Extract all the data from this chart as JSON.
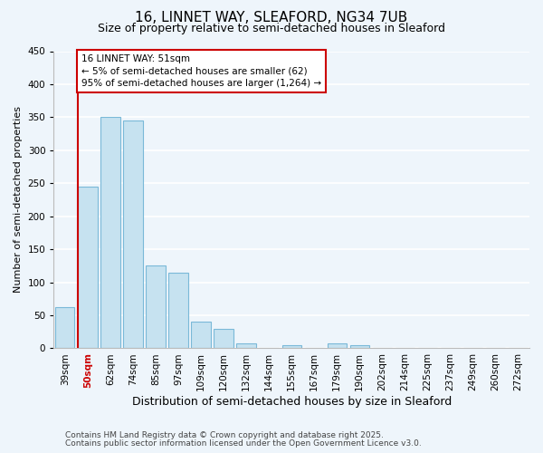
{
  "title": "16, LINNET WAY, SLEAFORD, NG34 7UB",
  "subtitle": "Size of property relative to semi-detached houses in Sleaford",
  "xlabel": "Distribution of semi-detached houses by size in Sleaford",
  "ylabel": "Number of semi-detached properties",
  "bin_labels": [
    "39sqm",
    "50sqm",
    "62sqm",
    "74sqm",
    "85sqm",
    "97sqm",
    "109sqm",
    "120sqm",
    "132sqm",
    "144sqm",
    "155sqm",
    "167sqm",
    "179sqm",
    "190sqm",
    "202sqm",
    "214sqm",
    "225sqm",
    "237sqm",
    "249sqm",
    "260sqm",
    "272sqm"
  ],
  "bar_values": [
    62,
    245,
    350,
    345,
    125,
    115,
    40,
    30,
    8,
    0,
    5,
    0,
    7,
    5,
    0,
    0,
    0,
    0,
    0,
    0,
    0
  ],
  "bar_color": "#c6e2f0",
  "bar_edge_color": "#7ab9d8",
  "vline_x_index": 1,
  "vline_color": "#cc0000",
  "annotation_title": "16 LINNET WAY: 51sqm",
  "annotation_line1": "← 5% of semi-detached houses are smaller (62)",
  "annotation_line2": "95% of semi-detached houses are larger (1,264) →",
  "annotation_box_color": "#ffffff",
  "annotation_box_edge": "#cc0000",
  "ylim": [
    0,
    450
  ],
  "yticks": [
    0,
    50,
    100,
    150,
    200,
    250,
    300,
    350,
    400,
    450
  ],
  "footer1": "Contains HM Land Registry data © Crown copyright and database right 2025.",
  "footer2": "Contains public sector information licensed under the Open Government Licence v3.0.",
  "bg_color": "#eef5fb",
  "grid_color": "#ffffff",
  "title_fontsize": 11,
  "subtitle_fontsize": 9,
  "ylabel_fontsize": 8,
  "xlabel_fontsize": 9,
  "tick_fontsize": 7.5,
  "footer_fontsize": 6.5
}
